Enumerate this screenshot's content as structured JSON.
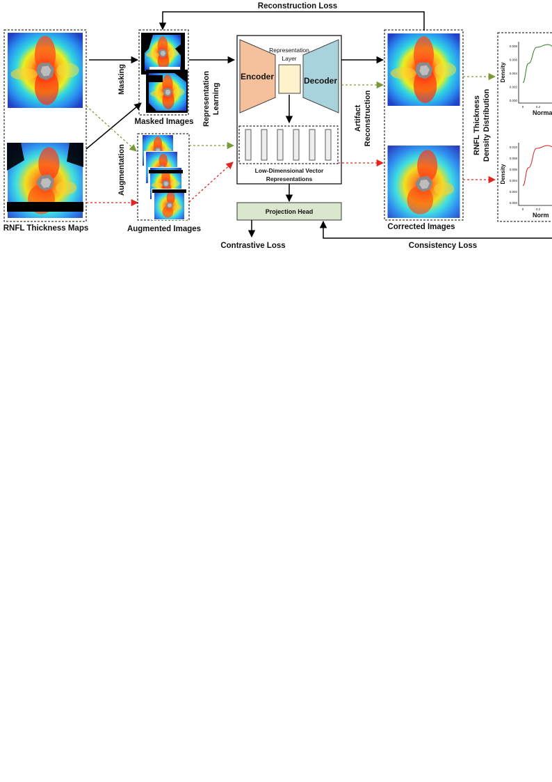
{
  "labels": {
    "reconstruction_loss": "Reconstruction Loss",
    "masking": "Masking",
    "augmentation": "Augmentation",
    "masked_images": "Masked Images",
    "augmented_images": "Augmented Images",
    "rnfl_maps": "RNFL Thickness Maps",
    "representation_learning_1": "Representation",
    "representation_learning_2": "Learning",
    "encoder": "Encoder",
    "decoder": "Decoder",
    "representation_layer_1": "Representation",
    "representation_layer_2": "Layer",
    "low_dim_1": "Low-Dimensional Vector",
    "low_dim_2": "Representations",
    "projection_head": "Projection Head",
    "contrastive_loss": "Contrastive Loss",
    "artifact_reconstruction_1": "Artifact",
    "artifact_reconstruction_2": "Reconstruction",
    "corrected_images": "Corrected Images",
    "consistency_loss": "Consistency Loss",
    "density_dist_1": "RNFL Thickness",
    "density_dist_2": "Density Distribution"
  },
  "plots": [
    {
      "ylabel": "Density",
      "xlabel": "Norma",
      "yticks": [
        "0.000",
        "0.002",
        "0.004",
        "0.006",
        "0.008"
      ],
      "xticks": [
        "0",
        "0.2"
      ],
      "color": "#2e7d1e"
    },
    {
      "ylabel": "Density",
      "xlabel": "Norm",
      "yticks": [
        "0.000",
        "0.002",
        "0.004",
        "0.006",
        "0.008",
        "0.010"
      ],
      "xticks": [
        "0",
        "0.2"
      ],
      "color": "#d42020"
    }
  ],
  "colors": {
    "encoder_fill": "#f5c19c",
    "decoder_fill": "#a9d3dc",
    "rep_layer_fill": "#fdf2cc",
    "projection_fill": "#dbe7cc",
    "green_arrow": "#7a9a3a",
    "red_arrow": "#e0261e"
  }
}
